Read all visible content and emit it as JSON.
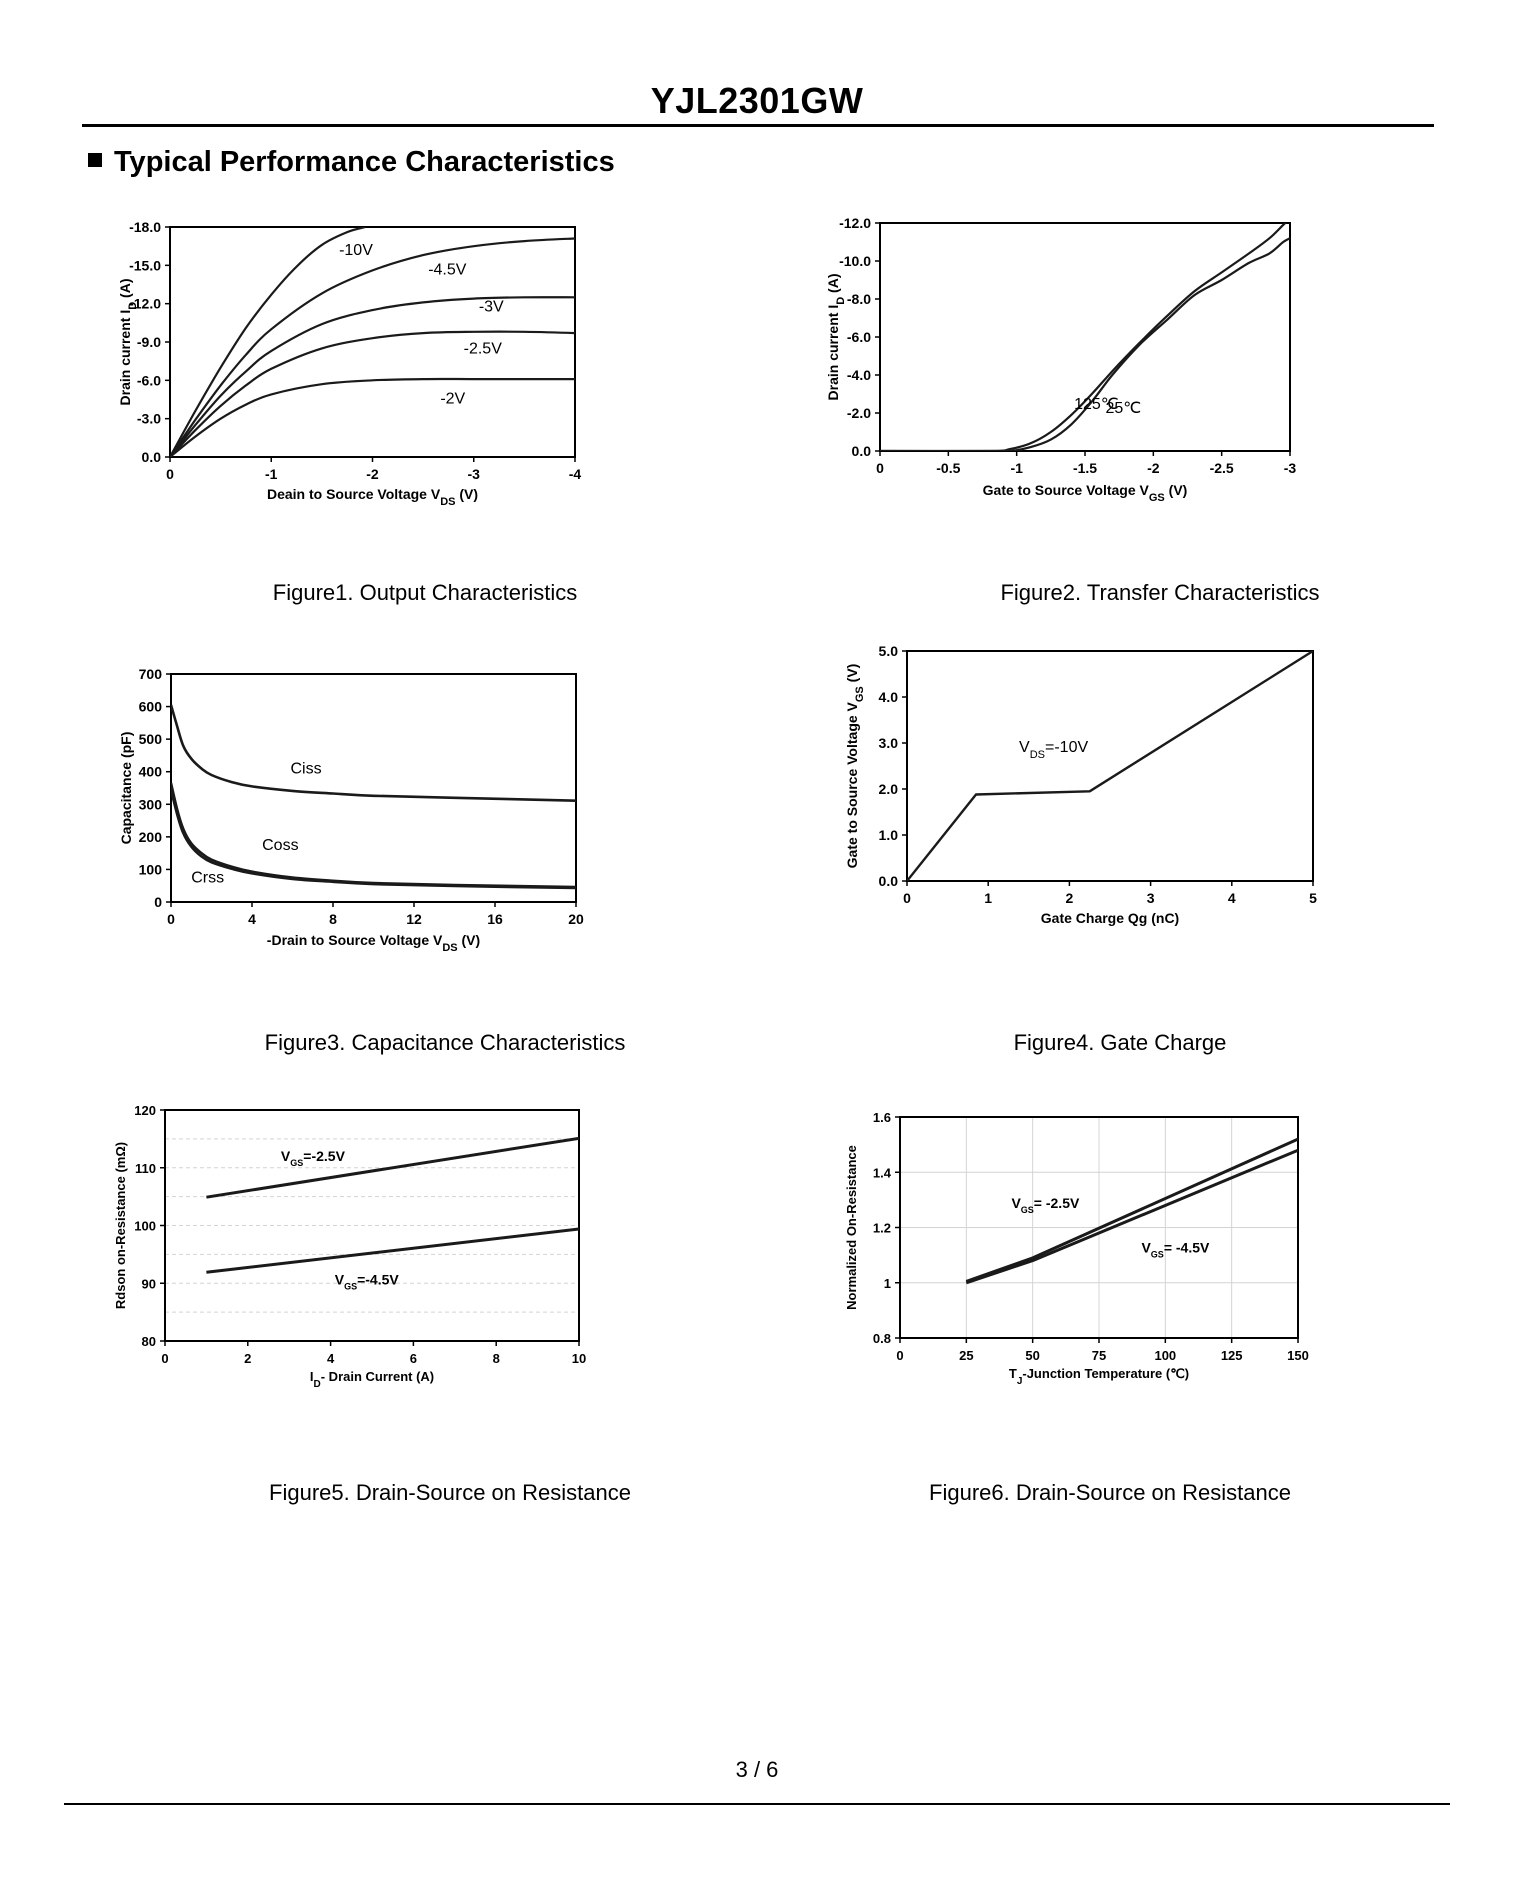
{
  "document": {
    "title": "YJL2301GW",
    "section_title": "Typical Performance Characteristics",
    "page_number": "3 / 6"
  },
  "chart_data": [
    {
      "type": "line",
      "caption": "Figure1.  Output Characteristics",
      "xlabel": "Deain to Source Voltage V<sub>DS</sub> (V)",
      "ylabel": "Drain current I<sub>D</sub> (A)",
      "xlim": [
        0,
        -4
      ],
      "ylim": [
        0,
        -18
      ],
      "xticks": [
        0,
        -1,
        -2,
        -3,
        -4
      ],
      "xticklabels": [
        "0",
        "-1",
        "-2",
        "-3",
        "-4"
      ],
      "yticks": [
        0,
        -3,
        -6,
        -9,
        -12,
        -15,
        -18
      ],
      "yticklabels": [
        "0.0",
        "-3.0",
        "-6.0",
        "-9.0",
        "-12.0",
        "-15.0",
        "-18.0"
      ],
      "series": [
        {
          "name": "-10V",
          "x": [
            0,
            -0.25,
            -0.5,
            -0.75,
            -1.0,
            -1.25,
            -1.5,
            -1.75,
            -1.93
          ],
          "y": [
            0,
            -3.6,
            -7.0,
            -10.1,
            -12.7,
            -14.9,
            -16.6,
            -17.6,
            -18.0
          ]
        },
        {
          "name": "-4.5V",
          "x": [
            0,
            -0.25,
            -0.5,
            -0.75,
            -1.0,
            -1.5,
            -2.0,
            -2.5,
            -3.0,
            -3.5,
            -4.0
          ],
          "y": [
            0,
            -2.9,
            -5.6,
            -8.0,
            -10.0,
            -12.8,
            -14.6,
            -15.8,
            -16.5,
            -16.9,
            -17.1
          ]
        },
        {
          "name": "-3V",
          "x": [
            0,
            -0.25,
            -0.5,
            -0.75,
            -1.0,
            -1.5,
            -2.0,
            -2.5,
            -3.0,
            -3.5,
            -4.0
          ],
          "y": [
            0,
            -2.5,
            -4.8,
            -6.7,
            -8.3,
            -10.4,
            -11.5,
            -12.1,
            -12.4,
            -12.5,
            -12.5
          ]
        },
        {
          "name": "-2.5V",
          "x": [
            0,
            -0.25,
            -0.5,
            -0.75,
            -1.0,
            -1.5,
            -2.0,
            -2.5,
            -3.0,
            -3.5,
            -4.0
          ],
          "y": [
            0,
            -2.1,
            -4.0,
            -5.6,
            -6.9,
            -8.5,
            -9.3,
            -9.7,
            -9.8,
            -9.8,
            -9.7
          ]
        },
        {
          "name": "-2V",
          "x": [
            0,
            -0.25,
            -0.5,
            -0.75,
            -1.0,
            -1.5,
            -2.0,
            -2.5,
            -3.0,
            -3.5,
            -4.0
          ],
          "y": [
            0,
            -1.6,
            -3.0,
            -4.1,
            -4.9,
            -5.7,
            -6.0,
            -6.1,
            -6.1,
            -6.1,
            -6.1
          ]
        }
      ],
      "annotations": [
        {
          "text": "-10V",
          "x": -1.67,
          "y": -15.8
        },
        {
          "text": "-4.5V",
          "x": -2.55,
          "y": -14.3
        },
        {
          "text": "-3V",
          "x": -3.05,
          "y": -11.4
        },
        {
          "text": "-2.5V",
          "x": -2.9,
          "y": -8.1
        },
        {
          "text": "-2V",
          "x": -2.67,
          "y": -4.2
        }
      ]
    },
    {
      "type": "line",
      "caption": "Figure2.  Transfer Characteristics",
      "xlabel": "Gate to Source Voltage V<sub>GS</sub> (V)",
      "ylabel": "Drain current I<sub>D</sub> (A)",
      "xlim": [
        0,
        -3
      ],
      "ylim": [
        0,
        -12
      ],
      "xticks": [
        0,
        -0.5,
        -1,
        -1.5,
        -2,
        -2.5,
        -3
      ],
      "xticklabels": [
        "0",
        "-0.5",
        "-1",
        "-1.5",
        "-2",
        "-2.5",
        "-3"
      ],
      "yticks": [
        0,
        -2,
        -4,
        -6,
        -8,
        -10,
        -12
      ],
      "yticklabels": [
        "0.0",
        "-2.0",
        "-4.0",
        "-6.0",
        "-8.0",
        "-10.0",
        "-12.0"
      ],
      "series": [
        {
          "name": "125℃",
          "x": [
            0,
            -0.8,
            -0.95,
            -1.1,
            -1.25,
            -1.4,
            -1.55,
            -1.7,
            -1.9,
            -2.1,
            -2.3,
            -2.5,
            -2.7,
            -2.85,
            -2.95,
            -3.0
          ],
          "y": [
            0,
            0,
            -0.1,
            -0.4,
            -1.0,
            -1.9,
            -3.0,
            -4.2,
            -5.7,
            -7.1,
            -8.4,
            -9.4,
            -10.4,
            -11.2,
            -11.9,
            -12.2
          ]
        },
        {
          "name": "25℃",
          "x": [
            0,
            -0.8,
            -0.95,
            -1.1,
            -1.25,
            -1.4,
            -1.55,
            -1.7,
            -1.9,
            -2.1,
            -2.3,
            -2.5,
            -2.7,
            -2.85,
            -2.95,
            -3.0
          ],
          "y": [
            0,
            0,
            0,
            -0.2,
            -0.6,
            -1.4,
            -2.6,
            -4.0,
            -5.6,
            -6.9,
            -8.2,
            -9.0,
            -9.9,
            -10.4,
            -11.0,
            -11.2
          ]
        }
      ],
      "annotations": [
        {
          "text": "125℃",
          "x": -1.42,
          "y": -2.2
        },
        {
          "text": "25℃",
          "x": -1.65,
          "y": -2.0
        }
      ]
    },
    {
      "type": "line",
      "caption": "Figure3.  Capacitance Characteristics",
      "xlabel": "-Drain to  Source Voltage V<sub>DS</sub> (V)",
      "ylabel": "Capacitance (pF)",
      "xlim": [
        0,
        20
      ],
      "ylim": [
        0,
        700
      ],
      "xticks": [
        0,
        4,
        8,
        12,
        16,
        20
      ],
      "xticklabels": [
        "0",
        "4",
        "8",
        "12",
        "16",
        "20"
      ],
      "yticks": [
        0,
        100,
        200,
        300,
        400,
        500,
        600,
        700
      ],
      "yticklabels": [
        "0",
        "100",
        "200",
        "300",
        "400",
        "500",
        "600",
        "700"
      ],
      "series": [
        {
          "name": "Ciss",
          "x": [
            0,
            0.3,
            0.6,
            1.0,
            1.5,
            2,
            3,
            4,
            6,
            8,
            10,
            14,
            20
          ],
          "y": [
            605,
            540,
            480,
            440,
            410,
            390,
            368,
            355,
            341,
            333,
            326,
            320,
            311
          ]
        },
        {
          "name": "Coss",
          "x": [
            0,
            0.3,
            0.6,
            1.0,
            1.5,
            2,
            3,
            4,
            6,
            8,
            10,
            14,
            20
          ],
          "y": [
            365,
            285,
            225,
            180,
            150,
            130,
            108,
            93,
            75,
            65,
            58,
            52,
            46
          ]
        },
        {
          "name": "Crss",
          "x": [
            0,
            0.3,
            0.6,
            1.0,
            1.5,
            2,
            3,
            4,
            6,
            8,
            10,
            14,
            20
          ],
          "y": [
            345,
            270,
            212,
            170,
            140,
            122,
            102,
            88,
            71,
            62,
            55,
            49,
            43
          ]
        }
      ],
      "annotations": [
        {
          "text": "Ciss",
          "x": 5.9,
          "y": 395
        },
        {
          "text": "Coss",
          "x": 4.5,
          "y": 160
        },
        {
          "text": "Crss",
          "x": 1.0,
          "y": 60
        }
      ]
    },
    {
      "type": "line",
      "caption": "Figure4. Gate Charge",
      "xlabel": "Gate Charge Qg (nC)",
      "ylabel": "Gate to  Source  Voltage V<sub>GS</sub> (V)",
      "xlim": [
        0,
        5
      ],
      "ylim": [
        0,
        5
      ],
      "xticks": [
        0,
        1,
        2,
        3,
        4,
        5
      ],
      "xticklabels": [
        "0",
        "1",
        "2",
        "3",
        "4",
        "5"
      ],
      "yticks": [
        0,
        1,
        2,
        3,
        4,
        5
      ],
      "yticklabels": [
        "0.0",
        "1.0",
        "2.0",
        "3.0",
        "4.0",
        "5.0"
      ],
      "series": [
        {
          "name": "V<sub>DS</sub>=-10V",
          "x": [
            0,
            0.85,
            2.25,
            5.0
          ],
          "y": [
            0,
            1.88,
            1.95,
            5.0
          ]
        }
      ],
      "annotations": [
        {
          "text": "V<sub>DS</sub>=-10V",
          "x": 1.38,
          "y": 2.8
        }
      ]
    },
    {
      "type": "line",
      "caption": "Figure5. Drain-Source on Resistance",
      "xlabel": "I<sub>D</sub>- Drain Current (A)",
      "ylabel": "Rdson on-Resistance (mΩ)",
      "xlim": [
        0,
        10
      ],
      "ylim": [
        80,
        120
      ],
      "xticks": [
        0,
        2,
        4,
        6,
        8,
        10
      ],
      "xticklabels": [
        "0",
        "2",
        "4",
        "6",
        "8",
        "10"
      ],
      "yticks": [
        80,
        90,
        100,
        110,
        120
      ],
      "yticklabels": [
        "80",
        "90",
        "100",
        "110",
        "120"
      ],
      "series": [
        {
          "name": "V<sub>GS</sub>=-2.5V",
          "x": [
            1,
            10
          ],
          "y": [
            104.9,
            115.1
          ]
        },
        {
          "name": "V<sub>GS</sub>=-4.5V",
          "x": [
            1,
            10
          ],
          "y": [
            91.9,
            99.4
          ]
        }
      ],
      "annotations": [
        {
          "text": "V<sub>GS</sub>=-2.5V",
          "x": 2.8,
          "y": 111.2
        },
        {
          "text": "V<sub>GS</sub>=-4.5V",
          "x": 4.1,
          "y": 89.8
        }
      ]
    },
    {
      "type": "line",
      "caption": "Figure6. Drain-Source on Resistance",
      "xlabel": "T<sub>J</sub>-Junction Temperature (℃)",
      "ylabel": "Normalized On-Resistance",
      "xlim": [
        0,
        150
      ],
      "ylim": [
        0.8,
        1.6
      ],
      "xticks": [
        0,
        25,
        50,
        75,
        100,
        125,
        150
      ],
      "xticklabels": [
        "0",
        "25",
        "50",
        "75",
        "100",
        "125",
        "150"
      ],
      "yticks": [
        0.8,
        1.0,
        1.2,
        1.4,
        1.6
      ],
      "yticklabels": [
        "0.8",
        "1",
        "1.2",
        "1.4",
        "1.6"
      ],
      "series": [
        {
          "name": "V<sub>GS</sub>= -2.5V",
          "x": [
            25,
            50,
            150
          ],
          "y": [
            1.005,
            1.09,
            1.52
          ]
        },
        {
          "name": "V<sub>GS</sub>= -4.5V",
          "x": [
            25,
            50,
            150
          ],
          "y": [
            1.0,
            1.08,
            1.48
          ]
        }
      ],
      "annotations": [
        {
          "text": "V<sub>GS</sub>= -2.5V",
          "x": 42,
          "y": 1.27
        },
        {
          "text": "V<sub>GS</sub>= -4.5V",
          "x": 91,
          "y": 1.11
        }
      ]
    }
  ],
  "colors": {
    "ink": "#000000",
    "paper": "#ffffff",
    "grid": "#d4d4d4",
    "curve": "#1a1a1a"
  }
}
